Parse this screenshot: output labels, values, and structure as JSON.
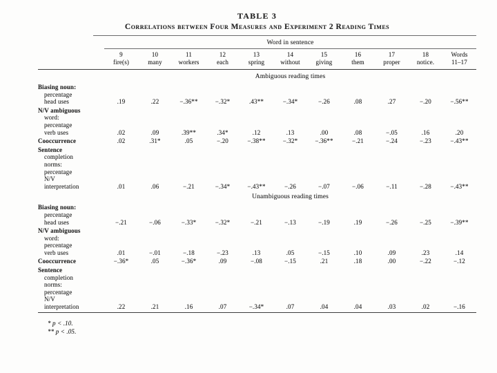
{
  "page": {
    "title": "TABLE 3",
    "subtitle": "Correlations between Four Measures and Experiment 2 Reading Times"
  },
  "table": {
    "group_header": "Word in sentence",
    "columns": [
      {
        "num": "9",
        "word": "fire(s)"
      },
      {
        "num": "10",
        "word": "many"
      },
      {
        "num": "11",
        "word": "workers"
      },
      {
        "num": "12",
        "word": "each"
      },
      {
        "num": "13",
        "word": "spring"
      },
      {
        "num": "14",
        "word": "without"
      },
      {
        "num": "15",
        "word": "giving"
      },
      {
        "num": "16",
        "word": "them"
      },
      {
        "num": "17",
        "word": "proper"
      },
      {
        "num": "18",
        "word": "notice."
      },
      {
        "num": "Words",
        "word": "11–17"
      }
    ],
    "sections": [
      {
        "header": "Ambiguous reading times",
        "rows": [
          {
            "label": [
              "Biasing noun:",
              "percentage",
              "head uses"
            ],
            "values": [
              ".19",
              ".22",
              "−.36**",
              "−.32*",
              ".43**",
              "−.34*",
              "−.26",
              ".08",
              ".27",
              "−.20",
              "−.56**"
            ]
          },
          {
            "label": [
              "N/V ambiguous",
              "word:",
              "percentage",
              "verb uses"
            ],
            "values": [
              ".02",
              ".09",
              ".39**",
              ".34*",
              ".12",
              ".13",
              ".00",
              ".08",
              "−.05",
              ".16",
              ".20"
            ]
          },
          {
            "label": [
              "Cooccurrence"
            ],
            "values": [
              ".02",
              ".31*",
              ".05",
              "−.20",
              "−.38**",
              "−.32*",
              "−.36**",
              "−.21",
              "−.24",
              "−.23",
              "−.43**"
            ]
          },
          {
            "label": [
              "Sentence",
              "completion",
              "norms:",
              "percentage",
              "N/V",
              "interpretation"
            ],
            "values": [
              ".01",
              ".06",
              "−.21",
              "−.34*",
              "−.43**",
              "−.26",
              "−.07",
              "−.06",
              "−.11",
              "−.28",
              "−.43**"
            ]
          }
        ]
      },
      {
        "header": "Unambiguous reading times",
        "rows": [
          {
            "label": [
              "Biasing noun:",
              "percentage",
              "head uses"
            ],
            "values": [
              "−.21",
              "−.06",
              "−.33*",
              "−.32*",
              "−.21",
              "−.13",
              "−.19",
              ".19",
              "−.26",
              "−.25",
              "−.39**"
            ]
          },
          {
            "label": [
              "N/V ambiguous",
              "word:",
              "percentage",
              "verb uses"
            ],
            "values": [
              ".01",
              "−.01",
              "−.18",
              "−.23",
              ".13",
              ".05",
              "−.15",
              ".10",
              ".09",
              ".23",
              ".14"
            ]
          },
          {
            "label": [
              "Cooccurrence"
            ],
            "values": [
              "−.36*",
              ".05",
              "−.36*",
              ".09",
              "−.08",
              "−.15",
              ".21",
              ".18",
              ".00",
              "−.22",
              "−.12"
            ]
          },
          {
            "label": [
              "Sentence",
              "completion",
              "norms:",
              "percentage",
              "N/V",
              "interpretation"
            ],
            "values": [
              ".22",
              ".21",
              ".16",
              ".07",
              "−.34*",
              ".07",
              ".04",
              ".04",
              ".03",
              ".02",
              "−.16"
            ]
          }
        ]
      }
    ],
    "footnotes": [
      "* p < .10.",
      "** p < .05."
    ]
  }
}
